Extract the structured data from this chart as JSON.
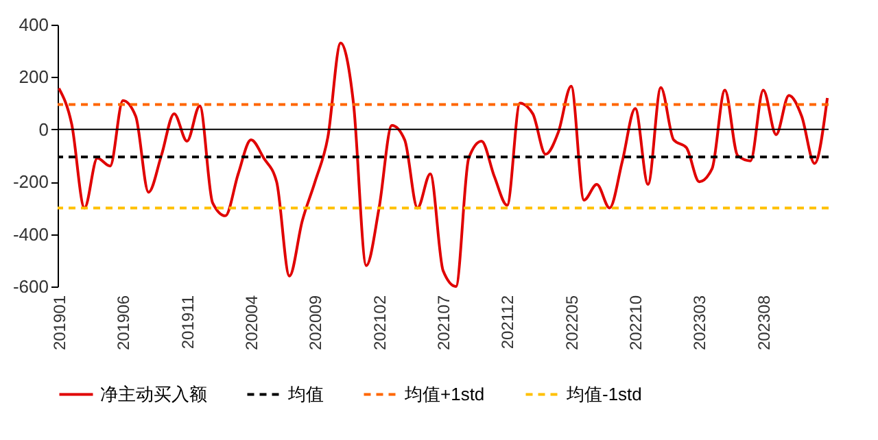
{
  "chart_data": {
    "type": "line",
    "categories": [
      "201901",
      null,
      null,
      null,
      null,
      "201906",
      null,
      null,
      null,
      null,
      "201911",
      null,
      null,
      null,
      null,
      "202004",
      null,
      null,
      null,
      null,
      "202009",
      null,
      null,
      null,
      null,
      "202102",
      null,
      null,
      null,
      null,
      "202107",
      null,
      null,
      null,
      null,
      "202112",
      null,
      null,
      null,
      null,
      "202205",
      null,
      null,
      null,
      null,
      "202210",
      null,
      null,
      null,
      null,
      "202303",
      null,
      null,
      null,
      null,
      "202308",
      null,
      null,
      null,
      null,
      null
    ],
    "series": [
      {
        "name": "净主动买入额",
        "color": "#e00000",
        "values": [
          157,
          20,
          -300,
          -110,
          -140,
          110,
          50,
          -240,
          -100,
          60,
          -45,
          90,
          -280,
          -330,
          -170,
          -40,
          -110,
          -200,
          -560,
          -350,
          -200,
          -30,
          330,
          100,
          -520,
          -300,
          15,
          -40,
          -300,
          -170,
          -540,
          -600,
          -110,
          -45,
          -180,
          -290,
          100,
          60,
          -95,
          -10,
          165,
          -270,
          -210,
          -300,
          -120,
          80,
          -210,
          160,
          -40,
          -70,
          -200,
          -150,
          150,
          -100,
          -120,
          150,
          -20,
          130,
          50,
          -130,
          120
        ]
      }
    ],
    "ref_lines": [
      {
        "axis": "y",
        "value": 0,
        "color": "#000000",
        "line_style": "solid"
      },
      {
        "axis": "y",
        "value": -105,
        "label": "均值",
        "color": "#000000",
        "line_style": "dashed"
      },
      {
        "axis": "y",
        "value": 95,
        "label": "均值+1std",
        "color": "#ff6600",
        "line_style": "dashed"
      },
      {
        "axis": "y",
        "value": -300,
        "label": "均值-1std",
        "color": "#ffc000",
        "line_style": "dashed"
      }
    ],
    "ylim": [
      -600,
      400
    ],
    "yticks": [
      -600,
      -400,
      -200,
      0,
      200,
      400
    ],
    "grid": false,
    "legend": "bottom",
    "line_style": "solid"
  }
}
